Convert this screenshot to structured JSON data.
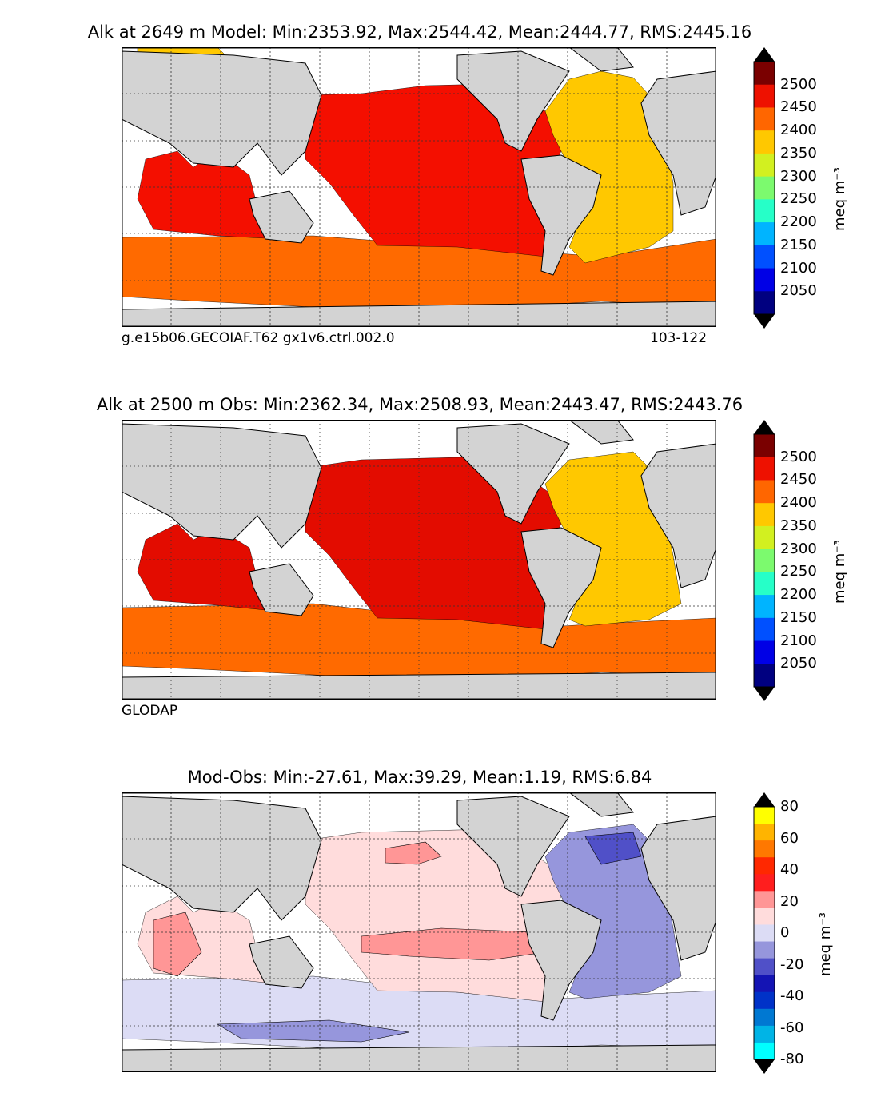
{
  "panels": [
    {
      "title": "Alk at 2649 m Model: Min:2353.92, Max:2544.42, Mean:2444.77, RMS:2445.16",
      "footer_left": "g.e15b06.GECOIAF.T62 gx1v6.ctrl.002.0",
      "footer_right": "103-122",
      "colorbar": {
        "labels": [
          "2500",
          "2450",
          "2400",
          "2350",
          "2300",
          "2250",
          "2200",
          "2150",
          "2100",
          "2050"
        ],
        "units": "meq m⁻³",
        "colors": [
          "#7a0000",
          "#ee1100",
          "#ff6600",
          "#ffc800",
          "#d2f020",
          "#7cfa6e",
          "#26ffc8",
          "#00b4ff",
          "#0050ff",
          "#0000e6",
          "#000080"
        ]
      },
      "ocean_fill": {
        "pacific": "#f40f00",
        "indian": "#f40f00",
        "atlantic": "#ffc800",
        "southern": "#ff6a00"
      }
    },
    {
      "title": "Alk at 2500 m Obs: Min:2362.34, Max:2508.93, Mean:2443.47, RMS:2443.76",
      "footer_left": "GLODAP",
      "footer_right": "",
      "colorbar": {
        "labels": [
          "2500",
          "2450",
          "2400",
          "2350",
          "2300",
          "2250",
          "2200",
          "2150",
          "2100",
          "2050"
        ],
        "units": "meq m⁻³",
        "colors": [
          "#7a0000",
          "#ee1100",
          "#ff6600",
          "#ffc800",
          "#d2f020",
          "#7cfa6e",
          "#26ffc8",
          "#00b4ff",
          "#0050ff",
          "#0000e6",
          "#000080"
        ]
      },
      "ocean_fill": {
        "pacific": "#e30c00",
        "indian": "#e30c00",
        "atlantic": "#ffc800",
        "southern": "#ff6a00"
      }
    },
    {
      "title": "Mod-Obs: Min:-27.61, Max:39.29, Mean:1.19, RMS:6.84",
      "footer_left": "",
      "footer_right": "",
      "colorbar": {
        "labels": [
          "80",
          "60",
          "40",
          "20",
          "0",
          "-20",
          "-40",
          "-60",
          "-80"
        ],
        "units": "meq m⁻³",
        "colors": [
          "#ffff00",
          "#ffb400",
          "#ff7800",
          "#ff2800",
          "#ff1e1e",
          "#ff9696",
          "#ffdcdc",
          "#dcdcf5",
          "#9696dc",
          "#5050c8",
          "#1414b4",
          "#0032c8",
          "#0078d2",
          "#00b4e6",
          "#00ffff"
        ]
      },
      "ocean_fill": {
        "pacific": "#ffdcdc",
        "indian": "#ffdcdc",
        "atlantic": "#9696dc",
        "southern": "#dcdcf5"
      }
    }
  ]
}
